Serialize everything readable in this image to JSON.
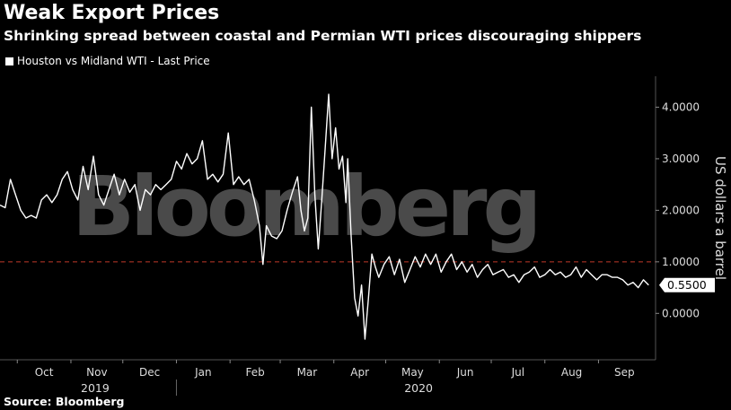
{
  "header": {
    "title": "Weak Export Prices",
    "subtitle": "Shrinking spread between coastal and Permian WTI prices discouraging shippers"
  },
  "footer": {
    "source": "Source: Bloomberg"
  },
  "watermark": "Bloomberg",
  "colors": {
    "background": "#000000",
    "line": "#ffffff",
    "reference_line": "#c0392b",
    "axis_text": "#dddddd",
    "watermark": "#4a4a4a"
  },
  "chart_data": {
    "type": "line",
    "title": "Weak Export Prices",
    "subtitle": "Shrinking spread between coastal and Permian WTI prices discouraging shippers",
    "ylabel": "US dollars a barrel",
    "ylim": [
      -0.9,
      4.6
    ],
    "yticks": [
      0,
      1,
      2,
      3,
      4
    ],
    "ytick_labels": [
      "0.0000",
      "1.0000",
      "2.0000",
      "3.0000",
      "4.0000"
    ],
    "x_range": [
      "2019-09-21",
      "2020-10-04"
    ],
    "month_ticks": [
      {
        "label": "Oct",
        "date": "2019-10-01"
      },
      {
        "label": "Nov",
        "date": "2019-11-01"
      },
      {
        "label": "Dec",
        "date": "2019-12-01"
      },
      {
        "label": "Jan",
        "date": "2020-01-01"
      },
      {
        "label": "Feb",
        "date": "2020-02-01"
      },
      {
        "label": "Mar",
        "date": "2020-03-01"
      },
      {
        "label": "Apr",
        "date": "2020-04-01"
      },
      {
        "label": "May",
        "date": "2020-05-01"
      },
      {
        "label": "Jun",
        "date": "2020-06-01"
      },
      {
        "label": "Jul",
        "date": "2020-07-01"
      },
      {
        "label": "Aug",
        "date": "2020-08-01"
      },
      {
        "label": "Sep",
        "date": "2020-09-01"
      }
    ],
    "year_labels": [
      {
        "label": "2019",
        "date": "2019-11-15"
      },
      {
        "label": "2020",
        "date": "2020-05-20"
      }
    ],
    "year_divider_date": "2020-01-01",
    "reference_line": {
      "y": 1.0,
      "style": "dashed"
    },
    "last_value_label": "0.5500",
    "grid": false,
    "legend_position": "top-left",
    "series": [
      {
        "name": "Houston vs Midland WTI - Last Price",
        "points": [
          [
            "2019-09-21",
            2.1
          ],
          [
            "2019-09-24",
            2.05
          ],
          [
            "2019-09-27",
            2.6
          ],
          [
            "2019-09-30",
            2.3
          ],
          [
            "2019-10-03",
            2.0
          ],
          [
            "2019-10-06",
            1.85
          ],
          [
            "2019-10-09",
            1.9
          ],
          [
            "2019-10-12",
            1.85
          ],
          [
            "2019-10-15",
            2.2
          ],
          [
            "2019-10-18",
            2.3
          ],
          [
            "2019-10-21",
            2.15
          ],
          [
            "2019-10-24",
            2.3
          ],
          [
            "2019-10-27",
            2.6
          ],
          [
            "2019-10-30",
            2.75
          ],
          [
            "2019-11-02",
            2.4
          ],
          [
            "2019-11-05",
            2.2
          ],
          [
            "2019-11-08",
            2.85
          ],
          [
            "2019-11-11",
            2.4
          ],
          [
            "2019-11-14",
            3.05
          ],
          [
            "2019-11-17",
            2.3
          ],
          [
            "2019-11-20",
            2.1
          ],
          [
            "2019-11-23",
            2.4
          ],
          [
            "2019-11-26",
            2.7
          ],
          [
            "2019-11-29",
            2.3
          ],
          [
            "2019-12-02",
            2.6
          ],
          [
            "2019-12-05",
            2.35
          ],
          [
            "2019-12-08",
            2.5
          ],
          [
            "2019-12-11",
            2.0
          ],
          [
            "2019-12-14",
            2.4
          ],
          [
            "2019-12-17",
            2.3
          ],
          [
            "2019-12-20",
            2.5
          ],
          [
            "2019-12-23",
            2.4
          ],
          [
            "2019-12-26",
            2.5
          ],
          [
            "2019-12-29",
            2.6
          ],
          [
            "2020-01-01",
            2.95
          ],
          [
            "2020-01-04",
            2.8
          ],
          [
            "2020-01-07",
            3.1
          ],
          [
            "2020-01-10",
            2.9
          ],
          [
            "2020-01-13",
            3.0
          ],
          [
            "2020-01-16",
            3.35
          ],
          [
            "2020-01-19",
            2.6
          ],
          [
            "2020-01-22",
            2.7
          ],
          [
            "2020-01-25",
            2.55
          ],
          [
            "2020-01-28",
            2.7
          ],
          [
            "2020-01-31",
            3.5
          ],
          [
            "2020-02-03",
            2.5
          ],
          [
            "2020-02-06",
            2.65
          ],
          [
            "2020-02-09",
            2.5
          ],
          [
            "2020-02-12",
            2.6
          ],
          [
            "2020-02-15",
            2.2
          ],
          [
            "2020-02-18",
            1.7
          ],
          [
            "2020-02-20",
            0.95
          ],
          [
            "2020-02-22",
            1.7
          ],
          [
            "2020-02-25",
            1.5
          ],
          [
            "2020-02-28",
            1.45
          ],
          [
            "2020-03-02",
            1.6
          ],
          [
            "2020-03-05",
            2.0
          ],
          [
            "2020-03-08",
            2.35
          ],
          [
            "2020-03-11",
            2.65
          ],
          [
            "2020-03-13",
            2.0
          ],
          [
            "2020-03-15",
            1.6
          ],
          [
            "2020-03-17",
            1.85
          ],
          [
            "2020-03-19",
            4.0
          ],
          [
            "2020-03-21",
            2.3
          ],
          [
            "2020-03-23",
            1.25
          ],
          [
            "2020-03-25",
            2.2
          ],
          [
            "2020-03-27",
            3.2
          ],
          [
            "2020-03-29",
            4.25
          ],
          [
            "2020-03-31",
            3.0
          ],
          [
            "2020-04-02",
            3.6
          ],
          [
            "2020-04-04",
            2.8
          ],
          [
            "2020-04-06",
            3.05
          ],
          [
            "2020-04-08",
            2.15
          ],
          [
            "2020-04-09",
            3.0
          ],
          [
            "2020-04-11",
            1.5
          ],
          [
            "2020-04-13",
            0.3
          ],
          [
            "2020-04-15",
            -0.05
          ],
          [
            "2020-04-17",
            0.55
          ],
          [
            "2020-04-19",
            -0.5
          ],
          [
            "2020-04-21",
            0.3
          ],
          [
            "2020-04-23",
            1.15
          ],
          [
            "2020-04-25",
            0.9
          ],
          [
            "2020-04-27",
            0.7
          ],
          [
            "2020-04-30",
            0.95
          ],
          [
            "2020-05-03",
            1.1
          ],
          [
            "2020-05-06",
            0.75
          ],
          [
            "2020-05-09",
            1.05
          ],
          [
            "2020-05-12",
            0.6
          ],
          [
            "2020-05-15",
            0.85
          ],
          [
            "2020-05-18",
            1.1
          ],
          [
            "2020-05-21",
            0.9
          ],
          [
            "2020-05-24",
            1.15
          ],
          [
            "2020-05-27",
            0.95
          ],
          [
            "2020-05-30",
            1.15
          ],
          [
            "2020-06-02",
            0.8
          ],
          [
            "2020-06-05",
            1.0
          ],
          [
            "2020-06-08",
            1.15
          ],
          [
            "2020-06-11",
            0.85
          ],
          [
            "2020-06-14",
            1.0
          ],
          [
            "2020-06-17",
            0.8
          ],
          [
            "2020-06-20",
            0.95
          ],
          [
            "2020-06-23",
            0.7
          ],
          [
            "2020-06-26",
            0.85
          ],
          [
            "2020-06-29",
            0.95
          ],
          [
            "2020-07-02",
            0.75
          ],
          [
            "2020-07-05",
            0.8
          ],
          [
            "2020-07-08",
            0.85
          ],
          [
            "2020-07-11",
            0.7
          ],
          [
            "2020-07-14",
            0.75
          ],
          [
            "2020-07-17",
            0.6
          ],
          [
            "2020-07-20",
            0.75
          ],
          [
            "2020-07-23",
            0.8
          ],
          [
            "2020-07-26",
            0.9
          ],
          [
            "2020-07-29",
            0.7
          ],
          [
            "2020-08-01",
            0.75
          ],
          [
            "2020-08-04",
            0.85
          ],
          [
            "2020-08-07",
            0.75
          ],
          [
            "2020-08-10",
            0.8
          ],
          [
            "2020-08-13",
            0.7
          ],
          [
            "2020-08-16",
            0.75
          ],
          [
            "2020-08-19",
            0.9
          ],
          [
            "2020-08-22",
            0.7
          ],
          [
            "2020-08-25",
            0.85
          ],
          [
            "2020-08-28",
            0.75
          ],
          [
            "2020-08-31",
            0.65
          ],
          [
            "2020-09-03",
            0.75
          ],
          [
            "2020-09-06",
            0.75
          ],
          [
            "2020-09-09",
            0.7
          ],
          [
            "2020-09-12",
            0.7
          ],
          [
            "2020-09-15",
            0.65
          ],
          [
            "2020-09-18",
            0.55
          ],
          [
            "2020-09-21",
            0.6
          ],
          [
            "2020-09-24",
            0.5
          ],
          [
            "2020-09-27",
            0.65
          ],
          [
            "2020-09-30",
            0.55
          ]
        ]
      }
    ]
  }
}
